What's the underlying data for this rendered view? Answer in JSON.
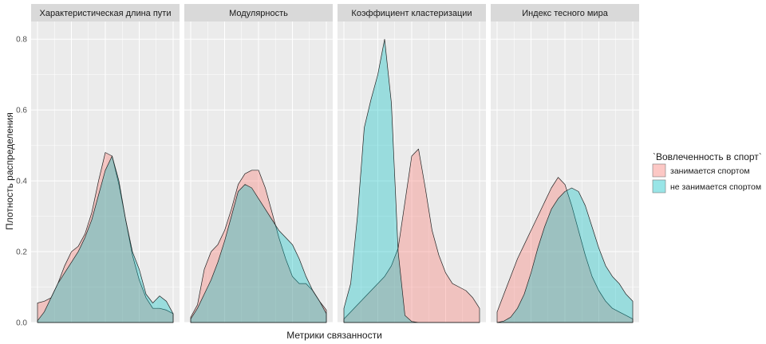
{
  "chart_data": {
    "type": "area",
    "subtype": "density-facets",
    "xlabel": "Метрики связанности",
    "ylabel": "Плотность распределения",
    "ylim": [
      0,
      0.85
    ],
    "y_ticks": [
      "0.0",
      "0.2",
      "0.4",
      "0.6",
      "0.8"
    ],
    "y_tick_values": [
      0,
      0.2,
      0.4,
      0.6,
      0.8
    ],
    "grid": true,
    "legend": {
      "title": "`Вовлеченность в спорт`",
      "position": "right",
      "entries": [
        {
          "label": "занимается спортом",
          "color": "#F8766D"
        },
        {
          "label": "не занимается спортом",
          "color": "#00BFC4"
        }
      ]
    },
    "colors": {
      "panel_bg": "#EBEBEB",
      "strip_bg": "#D9D9D9",
      "grid": "#FFFFFF",
      "series_1": "#F8766D",
      "series_2": "#00BFC4"
    },
    "facets": [
      {
        "title": "Характеристическая длина пути",
        "series": [
          {
            "name": "занимается спортом",
            "x": [
              0,
              0.05,
              0.1,
              0.15,
              0.2,
              0.25,
              0.3,
              0.35,
              0.4,
              0.45,
              0.5,
              0.55,
              0.6,
              0.65,
              0.7,
              0.75,
              0.8,
              0.85,
              0.9,
              0.95,
              1
            ],
            "y": [
              0.055,
              0.06,
              0.07,
              0.11,
              0.16,
              0.2,
              0.215,
              0.25,
              0.31,
              0.4,
              0.48,
              0.47,
              0.39,
              0.29,
              0.19,
              0.12,
              0.07,
              0.04,
              0.04,
              0.035,
              0.025
            ]
          },
          {
            "name": "не занимается спортом",
            "x": [
              0,
              0.05,
              0.1,
              0.15,
              0.2,
              0.25,
              0.3,
              0.35,
              0.4,
              0.45,
              0.5,
              0.55,
              0.6,
              0.65,
              0.7,
              0.75,
              0.8,
              0.85,
              0.9,
              0.95,
              1
            ],
            "y": [
              0.005,
              0.03,
              0.07,
              0.11,
              0.14,
              0.17,
              0.2,
              0.24,
              0.29,
              0.36,
              0.43,
              0.47,
              0.4,
              0.29,
              0.2,
              0.15,
              0.08,
              0.055,
              0.075,
              0.06,
              0.025
            ]
          }
        ]
      },
      {
        "title": "Модулярность",
        "series": [
          {
            "name": "занимается спортом",
            "x": [
              0,
              0.05,
              0.1,
              0.15,
              0.2,
              0.25,
              0.3,
              0.35,
              0.4,
              0.45,
              0.5,
              0.55,
              0.6,
              0.65,
              0.7,
              0.75,
              0.8,
              0.85,
              0.9,
              0.95,
              1
            ],
            "y": [
              0.015,
              0.05,
              0.15,
              0.2,
              0.22,
              0.26,
              0.32,
              0.39,
              0.42,
              0.43,
              0.43,
              0.38,
              0.31,
              0.24,
              0.18,
              0.13,
              0.11,
              0.11,
              0.09,
              0.06,
              0.035
            ]
          },
          {
            "name": "не занимается спортом",
            "x": [
              0,
              0.05,
              0.1,
              0.15,
              0.2,
              0.25,
              0.3,
              0.35,
              0.4,
              0.45,
              0.5,
              0.55,
              0.6,
              0.65,
              0.7,
              0.75,
              0.8,
              0.85,
              0.9,
              0.95,
              1
            ],
            "y": [
              0.01,
              0.04,
              0.08,
              0.12,
              0.17,
              0.23,
              0.3,
              0.37,
              0.39,
              0.38,
              0.35,
              0.32,
              0.29,
              0.26,
              0.24,
              0.22,
              0.18,
              0.13,
              0.09,
              0.06,
              0.025
            ]
          }
        ]
      },
      {
        "title": "Коэффициент кластеризации",
        "series": [
          {
            "name": "занимается спортом",
            "x": [
              0,
              0.05,
              0.1,
              0.15,
              0.2,
              0.25,
              0.3,
              0.35,
              0.4,
              0.45,
              0.5,
              0.55,
              0.6,
              0.65,
              0.7,
              0.75,
              0.8,
              0.85,
              0.9,
              0.95,
              1
            ],
            "y": [
              0.01,
              0.03,
              0.05,
              0.07,
              0.09,
              0.11,
              0.13,
              0.16,
              0.21,
              0.34,
              0.47,
              0.49,
              0.38,
              0.26,
              0.19,
              0.14,
              0.11,
              0.1,
              0.09,
              0.07,
              0.04
            ]
          },
          {
            "name": "не занимается спортом",
            "x": [
              0,
              0.05,
              0.1,
              0.15,
              0.2,
              0.25,
              0.3,
              0.35,
              0.4,
              0.45,
              0.5,
              0.55,
              0.6,
              0.65,
              0.7,
              0.75,
              0.8,
              0.85,
              0.9,
              0.95,
              1
            ],
            "y": [
              0.04,
              0.11,
              0.3,
              0.55,
              0.63,
              0.7,
              0.8,
              0.62,
              0.2,
              0.02,
              0.003,
              0,
              0,
              0,
              0,
              0,
              0,
              0,
              0,
              0,
              0
            ]
          }
        ]
      },
      {
        "title": "Индекс тесного мира",
        "series": [
          {
            "name": "занимается спортом",
            "x": [
              0,
              0.05,
              0.1,
              0.15,
              0.2,
              0.25,
              0.3,
              0.35,
              0.4,
              0.45,
              0.5,
              0.55,
              0.6,
              0.65,
              0.7,
              0.75,
              0.8,
              0.85,
              0.9,
              0.95,
              1
            ],
            "y": [
              0.03,
              0.08,
              0.13,
              0.18,
              0.22,
              0.26,
              0.3,
              0.34,
              0.38,
              0.41,
              0.39,
              0.33,
              0.26,
              0.19,
              0.13,
              0.09,
              0.06,
              0.04,
              0.03,
              0.02,
              0.01
            ]
          },
          {
            "name": "не занимается спортом",
            "x": [
              0,
              0.05,
              0.1,
              0.15,
              0.2,
              0.25,
              0.3,
              0.35,
              0.4,
              0.45,
              0.5,
              0.55,
              0.6,
              0.65,
              0.7,
              0.75,
              0.8,
              0.85,
              0.9,
              0.95,
              1
            ],
            "y": [
              0,
              0.004,
              0.015,
              0.04,
              0.08,
              0.14,
              0.21,
              0.27,
              0.32,
              0.35,
              0.37,
              0.38,
              0.37,
              0.33,
              0.27,
              0.21,
              0.16,
              0.13,
              0.11,
              0.08,
              0.06
            ]
          }
        ]
      }
    ]
  }
}
